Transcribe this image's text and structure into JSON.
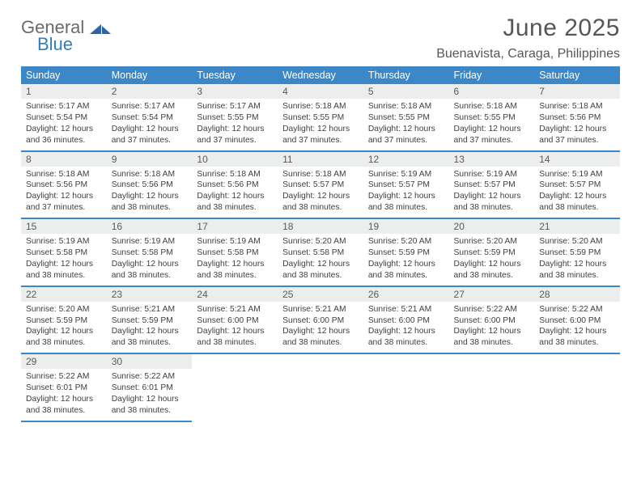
{
  "logo": {
    "word1": "General",
    "word2": "Blue"
  },
  "header": {
    "title": "June 2025",
    "location": "Buenavista, Caraga, Philippines"
  },
  "colors": {
    "header_bg": "#3b87c8",
    "header_text": "#ffffff",
    "daynum_bg": "#eceded",
    "border": "#3b87c8",
    "logo_gray": "#6a6a6a",
    "logo_blue": "#2f7ec0",
    "title_text": "#575757",
    "body_text": "#3f3f3f"
  },
  "week_headers": [
    "Sunday",
    "Monday",
    "Tuesday",
    "Wednesday",
    "Thursday",
    "Friday",
    "Saturday"
  ],
  "days": [
    {
      "n": 1,
      "sunrise": "5:17 AM",
      "sunset": "5:54 PM",
      "daylight": "12 hours and 36 minutes."
    },
    {
      "n": 2,
      "sunrise": "5:17 AM",
      "sunset": "5:54 PM",
      "daylight": "12 hours and 37 minutes."
    },
    {
      "n": 3,
      "sunrise": "5:17 AM",
      "sunset": "5:55 PM",
      "daylight": "12 hours and 37 minutes."
    },
    {
      "n": 4,
      "sunrise": "5:18 AM",
      "sunset": "5:55 PM",
      "daylight": "12 hours and 37 minutes."
    },
    {
      "n": 5,
      "sunrise": "5:18 AM",
      "sunset": "5:55 PM",
      "daylight": "12 hours and 37 minutes."
    },
    {
      "n": 6,
      "sunrise": "5:18 AM",
      "sunset": "5:55 PM",
      "daylight": "12 hours and 37 minutes."
    },
    {
      "n": 7,
      "sunrise": "5:18 AM",
      "sunset": "5:56 PM",
      "daylight": "12 hours and 37 minutes."
    },
    {
      "n": 8,
      "sunrise": "5:18 AM",
      "sunset": "5:56 PM",
      "daylight": "12 hours and 37 minutes."
    },
    {
      "n": 9,
      "sunrise": "5:18 AM",
      "sunset": "5:56 PM",
      "daylight": "12 hours and 38 minutes."
    },
    {
      "n": 10,
      "sunrise": "5:18 AM",
      "sunset": "5:56 PM",
      "daylight": "12 hours and 38 minutes."
    },
    {
      "n": 11,
      "sunrise": "5:18 AM",
      "sunset": "5:57 PM",
      "daylight": "12 hours and 38 minutes."
    },
    {
      "n": 12,
      "sunrise": "5:19 AM",
      "sunset": "5:57 PM",
      "daylight": "12 hours and 38 minutes."
    },
    {
      "n": 13,
      "sunrise": "5:19 AM",
      "sunset": "5:57 PM",
      "daylight": "12 hours and 38 minutes."
    },
    {
      "n": 14,
      "sunrise": "5:19 AM",
      "sunset": "5:57 PM",
      "daylight": "12 hours and 38 minutes."
    },
    {
      "n": 15,
      "sunrise": "5:19 AM",
      "sunset": "5:58 PM",
      "daylight": "12 hours and 38 minutes."
    },
    {
      "n": 16,
      "sunrise": "5:19 AM",
      "sunset": "5:58 PM",
      "daylight": "12 hours and 38 minutes."
    },
    {
      "n": 17,
      "sunrise": "5:19 AM",
      "sunset": "5:58 PM",
      "daylight": "12 hours and 38 minutes."
    },
    {
      "n": 18,
      "sunrise": "5:20 AM",
      "sunset": "5:58 PM",
      "daylight": "12 hours and 38 minutes."
    },
    {
      "n": 19,
      "sunrise": "5:20 AM",
      "sunset": "5:59 PM",
      "daylight": "12 hours and 38 minutes."
    },
    {
      "n": 20,
      "sunrise": "5:20 AM",
      "sunset": "5:59 PM",
      "daylight": "12 hours and 38 minutes."
    },
    {
      "n": 21,
      "sunrise": "5:20 AM",
      "sunset": "5:59 PM",
      "daylight": "12 hours and 38 minutes."
    },
    {
      "n": 22,
      "sunrise": "5:20 AM",
      "sunset": "5:59 PM",
      "daylight": "12 hours and 38 minutes."
    },
    {
      "n": 23,
      "sunrise": "5:21 AM",
      "sunset": "5:59 PM",
      "daylight": "12 hours and 38 minutes."
    },
    {
      "n": 24,
      "sunrise": "5:21 AM",
      "sunset": "6:00 PM",
      "daylight": "12 hours and 38 minutes."
    },
    {
      "n": 25,
      "sunrise": "5:21 AM",
      "sunset": "6:00 PM",
      "daylight": "12 hours and 38 minutes."
    },
    {
      "n": 26,
      "sunrise": "5:21 AM",
      "sunset": "6:00 PM",
      "daylight": "12 hours and 38 minutes."
    },
    {
      "n": 27,
      "sunrise": "5:22 AM",
      "sunset": "6:00 PM",
      "daylight": "12 hours and 38 minutes."
    },
    {
      "n": 28,
      "sunrise": "5:22 AM",
      "sunset": "6:00 PM",
      "daylight": "12 hours and 38 minutes."
    },
    {
      "n": 29,
      "sunrise": "5:22 AM",
      "sunset": "6:01 PM",
      "daylight": "12 hours and 38 minutes."
    },
    {
      "n": 30,
      "sunrise": "5:22 AM",
      "sunset": "6:01 PM",
      "daylight": "12 hours and 38 minutes."
    }
  ],
  "labels": {
    "sunrise": "Sunrise: ",
    "sunset": "Sunset: ",
    "daylight": "Daylight: "
  },
  "layout": {
    "cols": 7,
    "start_weekday": 0,
    "total_days": 30
  }
}
